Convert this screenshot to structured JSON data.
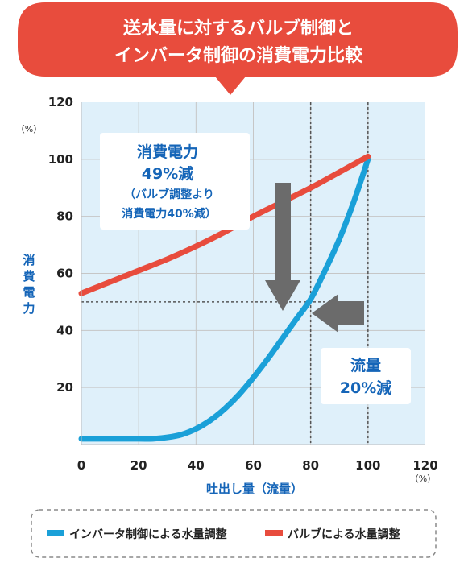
{
  "banner": {
    "line1": "送水量に対するバルブ制御と",
    "line2": "インバータ制御の消費電力比較"
  },
  "annotations": {
    "power": {
      "line1": "消費電力",
      "line2": "49%減",
      "line3": "（バルブ調整より",
      "line4": "消費電力40%減）"
    },
    "flow": {
      "line1": "流量",
      "line2": "20%減"
    }
  },
  "colors": {
    "inverter": "#1aa0d8",
    "valve": "#e84c3d",
    "banner": "#e84c3d",
    "label_blue": "#1565b8",
    "plot_bg": "#dff0fa",
    "arrow": "#6b6b6b"
  },
  "chart_data": {
    "type": "line",
    "ylabel": "消費電力",
    "xlabel": "吐出し量（流量）",
    "y_unit": "（%）",
    "x_unit": "（%）",
    "xlim": [
      0,
      120
    ],
    "ylim": [
      0,
      120
    ],
    "x_ticks": [
      0,
      20,
      40,
      60,
      80,
      100,
      120
    ],
    "y_ticks": [
      20,
      40,
      60,
      80,
      100,
      120
    ],
    "grid": true,
    "series": [
      {
        "name": "インバータ制御による水量調整",
        "color": "#1aa0d8",
        "points": [
          [
            0,
            2
          ],
          [
            10,
            2
          ],
          [
            20,
            2
          ],
          [
            25,
            2
          ],
          [
            30,
            2.5
          ],
          [
            35,
            3.5
          ],
          [
            40,
            5.5
          ],
          [
            45,
            8.5
          ],
          [
            50,
            12.5
          ],
          [
            55,
            17.5
          ],
          [
            60,
            23.5
          ],
          [
            65,
            30
          ],
          [
            70,
            37
          ],
          [
            75,
            44
          ],
          [
            80,
            51
          ],
          [
            85,
            61
          ],
          [
            90,
            72
          ],
          [
            95,
            85
          ],
          [
            100,
            100
          ]
        ]
      },
      {
        "name": "バルブによる水量調整",
        "color": "#e84c3d",
        "points": [
          [
            0,
            53
          ],
          [
            10,
            57
          ],
          [
            20,
            61
          ],
          [
            30,
            65
          ],
          [
            40,
            69.5
          ],
          [
            50,
            74.5
          ],
          [
            60,
            80
          ],
          [
            70,
            85
          ],
          [
            80,
            90
          ],
          [
            90,
            95.5
          ],
          [
            100,
            101
          ]
        ]
      }
    ],
    "reference_lines": {
      "vertical_x": [
        80,
        100
      ],
      "horizontal_y": 50
    }
  }
}
